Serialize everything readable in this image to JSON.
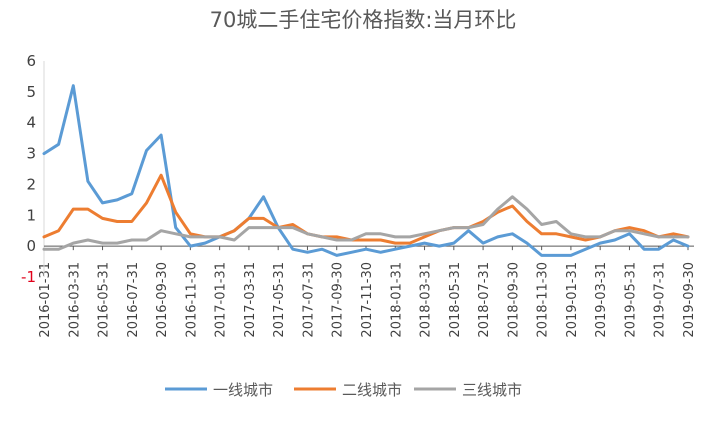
{
  "chart_data": {
    "type": "line",
    "title": "70城二手住宅价格指数:当月环比",
    "xlabel": "",
    "ylabel": "",
    "ylim": [
      -1,
      6
    ],
    "yticks": [
      6,
      5,
      4,
      3,
      2,
      1,
      0,
      -1
    ],
    "grid": false,
    "legend_position": "bottom",
    "x_tick_labels": [
      "2016-01-31",
      "2016-03-31",
      "2016-05-31",
      "2016-07-31",
      "2016-09-30",
      "2016-11-30",
      "2017-01-31",
      "2017-03-31",
      "2017-05-31",
      "2017-07-31",
      "2017-09-30",
      "2017-11-30",
      "2018-01-31",
      "2018-03-31",
      "2018-05-31",
      "2018-07-31",
      "2018-09-30",
      "2018-11-30",
      "2019-01-31",
      "2019-03-31",
      "2019-05-31",
      "2019-07-31",
      "2019-09-30"
    ],
    "x": [
      "2016-01",
      "2016-02",
      "2016-03",
      "2016-04",
      "2016-05",
      "2016-06",
      "2016-07",
      "2016-08",
      "2016-09",
      "2016-10",
      "2016-11",
      "2016-12",
      "2017-01",
      "2017-02",
      "2017-03",
      "2017-04",
      "2017-05",
      "2017-06",
      "2017-07",
      "2017-08",
      "2017-09",
      "2017-10",
      "2017-11",
      "2017-12",
      "2018-01",
      "2018-02",
      "2018-03",
      "2018-04",
      "2018-05",
      "2018-06",
      "2018-07",
      "2018-08",
      "2018-09",
      "2018-10",
      "2018-11",
      "2018-12",
      "2019-01",
      "2019-02",
      "2019-03",
      "2019-04",
      "2019-05",
      "2019-06",
      "2019-07",
      "2019-08",
      "2019-09"
    ],
    "series": [
      {
        "name": "一线城市",
        "color": "#5b9bd5",
        "values": [
          3.0,
          3.3,
          5.2,
          2.1,
          1.4,
          1.5,
          1.7,
          3.1,
          3.6,
          0.6,
          0.0,
          0.1,
          0.3,
          0.5,
          0.9,
          1.6,
          0.6,
          -0.1,
          -0.2,
          -0.1,
          -0.3,
          -0.2,
          -0.1,
          -0.2,
          -0.1,
          0.0,
          0.1,
          0.0,
          0.1,
          0.5,
          0.1,
          0.3,
          0.4,
          0.1,
          -0.3,
          -0.3,
          -0.3,
          -0.1,
          0.1,
          0.2,
          0.4,
          -0.1,
          -0.1,
          0.2,
          0.0
        ]
      },
      {
        "name": "二线城市",
        "color": "#ed7d31",
        "values": [
          0.3,
          0.5,
          1.2,
          1.2,
          0.9,
          0.8,
          0.8,
          1.4,
          2.3,
          1.1,
          0.4,
          0.3,
          0.3,
          0.5,
          0.9,
          0.9,
          0.6,
          0.7,
          0.4,
          0.3,
          0.3,
          0.2,
          0.2,
          0.2,
          0.1,
          0.1,
          0.3,
          0.5,
          0.6,
          0.6,
          0.8,
          1.1,
          1.3,
          0.8,
          0.4,
          0.4,
          0.3,
          0.2,
          0.3,
          0.5,
          0.6,
          0.5,
          0.3,
          0.4,
          0.3
        ]
      },
      {
        "name": "三线城市",
        "color": "#a5a5a5",
        "values": [
          -0.1,
          -0.1,
          0.1,
          0.2,
          0.1,
          0.1,
          0.2,
          0.2,
          0.5,
          0.4,
          0.3,
          0.3,
          0.3,
          0.2,
          0.6,
          0.6,
          0.6,
          0.6,
          0.4,
          0.3,
          0.2,
          0.2,
          0.4,
          0.4,
          0.3,
          0.3,
          0.4,
          0.5,
          0.6,
          0.6,
          0.7,
          1.2,
          1.6,
          1.2,
          0.7,
          0.8,
          0.4,
          0.3,
          0.3,
          0.5,
          0.5,
          0.4,
          0.3,
          0.3,
          0.3
        ]
      }
    ]
  }
}
